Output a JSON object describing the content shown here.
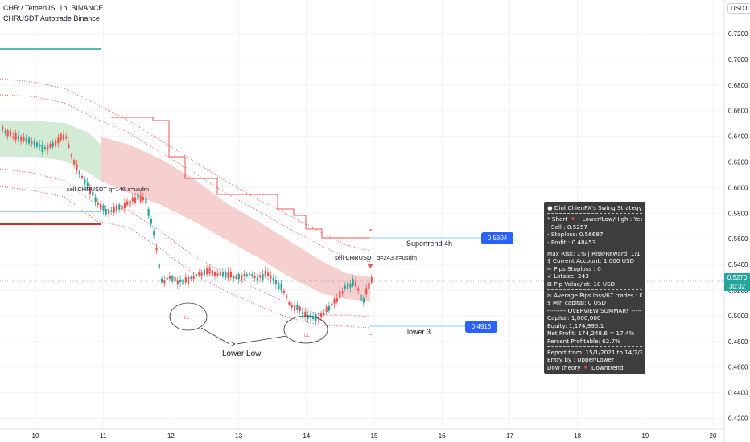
{
  "header": {
    "symbol_line": "CHR / TetherUS, 1h, BINANCE",
    "strategy_line": "CHRUSDT Autotrade Binance"
  },
  "price_axis": {
    "unit": "USDT",
    "ticks": [
      "0.7200",
      "0.7000",
      "0.6800",
      "0.6600",
      "0.6400",
      "0.6200",
      "0.6000",
      "0.5800",
      "0.5600",
      "0.5400",
      "0.5200",
      "0.5000",
      "0.4800",
      "0.4600",
      "0.4400",
      "0.4200"
    ],
    "last_price": "0.5270",
    "countdown": "30:32",
    "last_color": "#26a69a"
  },
  "time_axis": {
    "ticks": [
      "10",
      "11",
      "12",
      "13",
      "14",
      "15",
      "16",
      "17",
      "18",
      "19",
      "20"
    ]
  },
  "annotations": {
    "sell1": "sell CHRUSDT q=146 a=usdm",
    "sell2": "sell CHRUSDT q=243 a=usdm",
    "supertrend_label": "Supertrend 4h",
    "supertrend_value": "0.5604",
    "lower_label": "lower 3",
    "lower_value": "0.4916",
    "lower_low": "Lower Low",
    "ll": "LL",
    "callout_color": "#2962ff"
  },
  "panel": {
    "title": "DinhChienFX's Swing Strategy",
    "lines_a": [
      "* Short 🔻 - Lower/Low/High : Yes",
      " - Sell   : 0.5257",
      " - Stoploss: 0.56687",
      " - Profit  : 0.48453"
    ],
    "lines_b": [
      "Max Risk: 1% | Risk/Reward: 1/1",
      " $ Current Account: 1,000 USD",
      "✂ Pips Stoploss : 0",
      " ✓ Lotsize: 243",
      " ⊠ Pip Value/lot: 10 USD"
    ],
    "lines_c": [
      "✂ Average Pips loss/67 trades : 0",
      " $ Min capital: 0 USD",
      "--------- OVERVIEW SUMMARY ---------",
      " Capital: 1,000,000",
      " Equity: 1,174,990.1",
      " Net Profit: 174,248.6 = 17.4%",
      " Percent Profitable: 62.7%"
    ],
    "lines_d": [
      "Report from: 15/1/2021 to 14/2/2022",
      " Entry by : Upper/Lower",
      " Dow theory 🔻 Downtrend"
    ]
  },
  "colors": {
    "up": "#26a69a",
    "down": "#ef5350",
    "band_red": "#ef9a9a",
    "band_green": "#a5d6a7",
    "background": "#ffffff"
  }
}
